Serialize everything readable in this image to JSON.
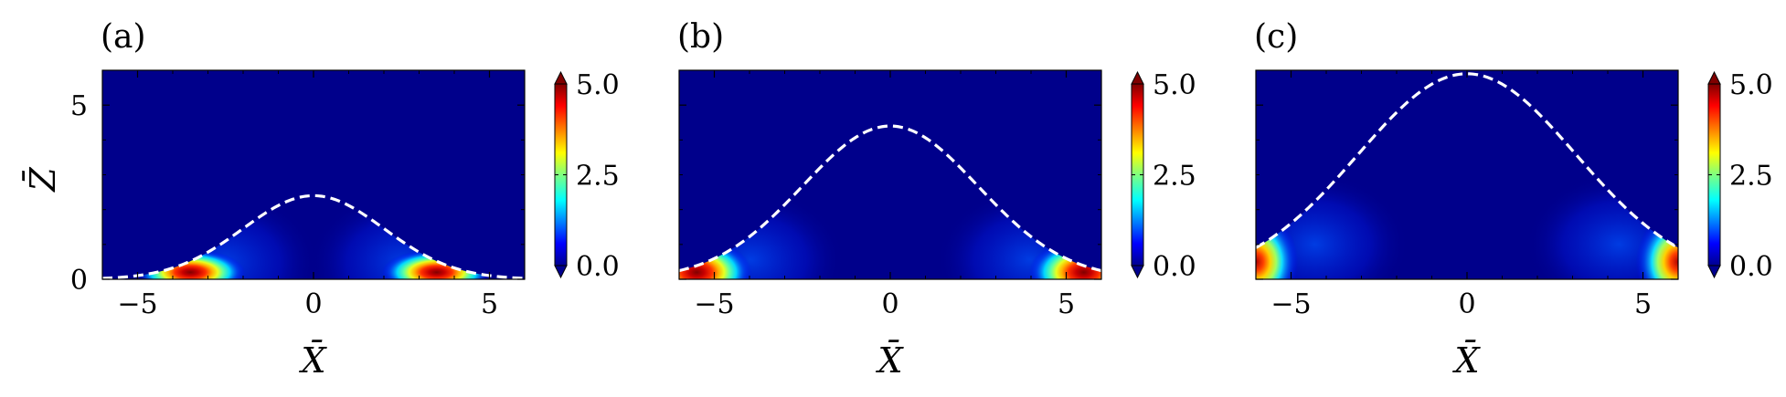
{
  "figure": {
    "panel_labels": [
      "(a)",
      "(b)",
      "(c)"
    ]
  },
  "colors": {
    "background_field": "#00008b",
    "boundary_curve": "#ffffff",
    "colormap": "jet"
  },
  "chart_data": [
    {
      "type": "heatmap",
      "panel_label": "(a)",
      "title": "",
      "xlabel": "X̄",
      "ylabel": "Z̄",
      "xlim": [
        -6,
        6
      ],
      "ylim": [
        0,
        6
      ],
      "xticks": [
        -5,
        0,
        5
      ],
      "xtick_labels": [
        "−5",
        "0",
        "5"
      ],
      "yticks": [
        0,
        5
      ],
      "ytick_labels": [
        "0",
        "5"
      ],
      "boundary_curve": {
        "style": "dashed",
        "color": "white",
        "shape": "gaussian",
        "peak_x": 0,
        "peak_z": 2.4,
        "width": 2.0
      },
      "hotspots": [
        {
          "x": -3.5,
          "z": 0.2,
          "intensity": 5.0
        },
        {
          "x": 3.5,
          "z": 0.2,
          "intensity": 5.0
        }
      ],
      "colorbar": {
        "min": 0.0,
        "max": 5.0,
        "ticks": [
          0.0,
          2.5,
          5.0
        ],
        "tick_labels": [
          "0.0",
          "2.5",
          "5.0"
        ],
        "extend": "both",
        "colormap": "jet"
      }
    },
    {
      "type": "heatmap",
      "panel_label": "(b)",
      "title": "",
      "xlabel": "X̄",
      "ylabel": "",
      "xlim": [
        -6,
        6
      ],
      "ylim": [
        0,
        6
      ],
      "xticks": [
        -5,
        0,
        5
      ],
      "xtick_labels": [
        "−5",
        "0",
        "5"
      ],
      "yticks": [
        0,
        5
      ],
      "ytick_labels": [
        "",
        ""
      ],
      "boundary_curve": {
        "style": "dashed",
        "color": "white",
        "shape": "gaussian",
        "peak_x": 0,
        "peak_z": 4.4,
        "width": 2.5
      },
      "hotspots": [
        {
          "x": -5.5,
          "z": 0.2,
          "intensity": 5.0
        },
        {
          "x": 5.5,
          "z": 0.2,
          "intensity": 5.0
        }
      ],
      "colorbar": {
        "min": 0.0,
        "max": 5.0,
        "ticks": [
          0.0,
          2.5,
          5.0
        ],
        "tick_labels": [
          "0.0",
          "2.5",
          "5.0"
        ],
        "extend": "both",
        "colormap": "jet"
      }
    },
    {
      "type": "heatmap",
      "panel_label": "(c)",
      "title": "",
      "xlabel": "X̄",
      "ylabel": "",
      "xlim": [
        -6,
        6
      ],
      "ylim": [
        0,
        6
      ],
      "xticks": [
        -5,
        0,
        5
      ],
      "xtick_labels": [
        "−5",
        "0",
        "5"
      ],
      "yticks": [
        0,
        5
      ],
      "ytick_labels": [
        "",
        ""
      ],
      "boundary_curve": {
        "style": "dashed",
        "color": "white",
        "shape": "gaussian",
        "peak_x": 0,
        "peak_z": 5.9,
        "width": 3.1
      },
      "hotspots": [
        {
          "x": -6.0,
          "z": 0.5,
          "intensity": 4.2
        },
        {
          "x": 6.0,
          "z": 0.5,
          "intensity": 4.2
        }
      ],
      "colorbar": {
        "min": 0.0,
        "max": 5.0,
        "ticks": [
          0.0,
          2.5,
          5.0
        ],
        "tick_labels": [
          "0.0",
          "2.5",
          "5.0"
        ],
        "extend": "both",
        "colormap": "jet"
      }
    }
  ]
}
